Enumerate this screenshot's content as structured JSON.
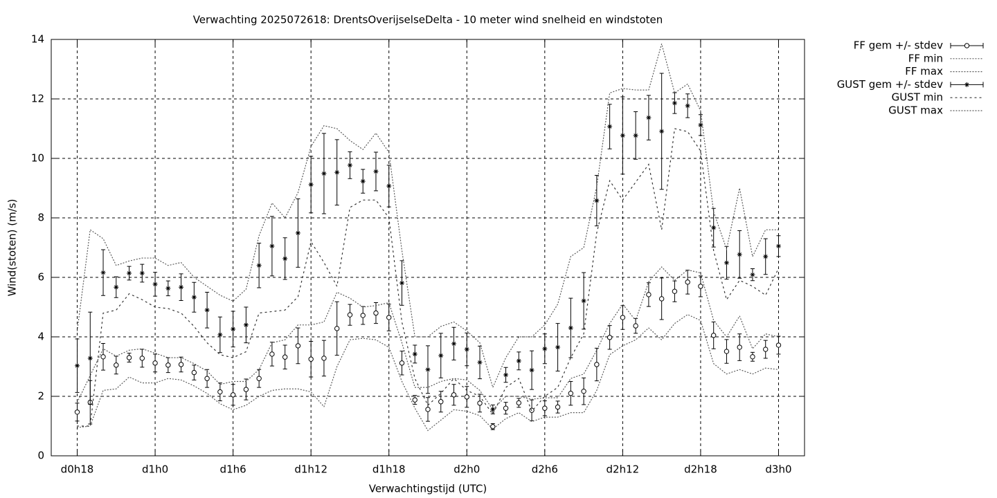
{
  "chart_data": {
    "type": "errorbar-line",
    "title": "Verwachting 2025072618: DrentsOverijselseDelta - 10 meter wind snelheid en windstoten",
    "xlabel": "Verwachtingstijd (UTC)",
    "ylabel": "Wind(stoten) (m/s)",
    "x": [
      18,
      19,
      20,
      21,
      22,
      23,
      24,
      25,
      26,
      27,
      28,
      29,
      30,
      31,
      32,
      33,
      34,
      35,
      36,
      37,
      38,
      39,
      40,
      41,
      42,
      43,
      44,
      45,
      46,
      47,
      48,
      49,
      50,
      51,
      52,
      53,
      54,
      55,
      56,
      57,
      58,
      59,
      60,
      61,
      62,
      63,
      64,
      65,
      66,
      67,
      68,
      69,
      70,
      71,
      72
    ],
    "xlim": [
      16,
      74
    ],
    "xticks": [
      {
        "value": 18,
        "label": "d0h18"
      },
      {
        "value": 24,
        "label": "d1h0"
      },
      {
        "value": 30,
        "label": "d1h6"
      },
      {
        "value": 36,
        "label": "d1h12"
      },
      {
        "value": 42,
        "label": "d1h18"
      },
      {
        "value": 48,
        "label": "d2h0"
      },
      {
        "value": 54,
        "label": "d2h6"
      },
      {
        "value": 60,
        "label": "d2h12"
      },
      {
        "value": 66,
        "label": "d2h18"
      },
      {
        "value": 72,
        "label": "d3h0"
      }
    ],
    "ylim": [
      0,
      14
    ],
    "yticks": [
      0,
      2,
      4,
      6,
      8,
      10,
      12,
      14
    ],
    "grid": true,
    "legend": "outside-top-right",
    "series": [
      {
        "name": "FF gem +/- stdev",
        "color": "#000000",
        "style": "errorbars",
        "marker": "circle",
        "values": [
          1.47,
          1.8,
          3.33,
          3.05,
          3.3,
          3.28,
          3.12,
          3.05,
          3.07,
          2.8,
          2.6,
          2.15,
          2.05,
          2.23,
          2.6,
          3.42,
          3.32,
          3.7,
          3.25,
          3.28,
          4.28,
          4.74,
          4.72,
          4.8,
          4.65,
          3.12,
          1.88,
          1.56,
          1.82,
          2.05,
          1.98,
          1.77,
          0.98,
          1.6,
          1.78,
          1.53,
          1.6,
          1.64,
          2.1,
          2.17,
          3.07,
          3.98,
          4.65,
          4.37,
          5.42,
          5.28,
          5.53,
          5.84,
          5.7,
          4.05,
          3.51,
          3.65,
          3.33,
          3.58,
          3.72
        ],
        "errors": [
          0.3,
          0.73,
          0.45,
          0.3,
          0.15,
          0.3,
          0.3,
          0.25,
          0.25,
          0.25,
          0.3,
          0.3,
          0.35,
          0.35,
          0.3,
          0.4,
          0.4,
          0.6,
          0.6,
          0.6,
          0.9,
          0.35,
          0.3,
          0.35,
          0.45,
          0.4,
          0.15,
          0.4,
          0.35,
          0.35,
          0.35,
          0.3,
          0.1,
          0.2,
          0.15,
          0.35,
          0.25,
          0.2,
          0.4,
          0.45,
          0.55,
          0.4,
          0.4,
          0.25,
          0.4,
          0.7,
          0.35,
          0.4,
          0.35,
          0.45,
          0.4,
          0.45,
          0.15,
          0.3,
          0.3
        ]
      },
      {
        "name": "FF min",
        "color": "#555555",
        "style": "dotted",
        "values": [
          0.95,
          1.0,
          2.2,
          2.25,
          2.65,
          2.45,
          2.45,
          2.6,
          2.55,
          2.35,
          2.1,
          1.75,
          1.55,
          1.7,
          2.0,
          2.2,
          2.25,
          2.25,
          2.15,
          1.65,
          3.0,
          3.9,
          3.95,
          3.9,
          3.65,
          2.5,
          1.6,
          0.85,
          1.2,
          1.55,
          1.5,
          1.35,
          0.9,
          1.25,
          1.45,
          1.15,
          1.3,
          1.3,
          1.45,
          1.45,
          2.2,
          3.4,
          3.7,
          3.9,
          4.3,
          3.9,
          4.45,
          4.75,
          4.55,
          3.1,
          2.75,
          2.9,
          2.75,
          2.95,
          2.9
        ]
      },
      {
        "name": "FF max",
        "color": "#555555",
        "style": "dotted",
        "values": [
          1.8,
          2.7,
          3.6,
          3.35,
          3.55,
          3.6,
          3.45,
          3.3,
          3.3,
          3.1,
          2.85,
          2.4,
          2.5,
          2.5,
          2.9,
          3.8,
          3.9,
          4.4,
          4.4,
          4.5,
          5.5,
          5.3,
          5.0,
          5.05,
          5.15,
          3.8,
          2.3,
          2.3,
          2.5,
          2.6,
          2.55,
          2.2,
          1.55,
          2.0,
          2.0,
          1.9,
          1.95,
          1.95,
          2.6,
          2.75,
          3.55,
          4.45,
          5.1,
          4.55,
          5.85,
          6.35,
          5.9,
          6.25,
          6.15,
          4.55,
          4.0,
          4.7,
          3.6,
          4.1,
          4.0
        ]
      },
      {
        "name": "GUST gem +/- stdev",
        "color": "#000000",
        "style": "errorbars",
        "marker": "star",
        "values": [
          3.03,
          3.28,
          6.16,
          5.67,
          6.14,
          6.14,
          5.77,
          5.63,
          5.67,
          5.33,
          4.9,
          4.07,
          4.26,
          4.4,
          6.4,
          7.05,
          6.63,
          7.49,
          9.12,
          9.49,
          9.53,
          9.77,
          9.23,
          9.56,
          9.07,
          5.81,
          3.42,
          2.9,
          3.37,
          3.77,
          3.58,
          3.14,
          1.56,
          2.72,
          3.19,
          2.88,
          3.6,
          3.65,
          4.3,
          5.21,
          8.58,
          11.07,
          10.77,
          10.77,
          11.37,
          10.91,
          11.86,
          11.77,
          11.12,
          7.67,
          6.49,
          6.77,
          6.09,
          6.7,
          7.05
        ],
        "errors": [
          0.9,
          1.55,
          0.77,
          0.35,
          0.23,
          0.3,
          0.4,
          0.25,
          0.45,
          0.5,
          0.6,
          0.6,
          0.6,
          0.6,
          0.75,
          1.0,
          0.7,
          1.15,
          0.95,
          1.35,
          1.1,
          0.45,
          0.4,
          0.65,
          0.7,
          0.75,
          0.3,
          0.8,
          0.75,
          0.55,
          0.55,
          0.55,
          0.15,
          0.25,
          0.3,
          0.65,
          0.5,
          0.8,
          1.0,
          0.95,
          0.85,
          0.75,
          1.3,
          0.8,
          0.75,
          1.95,
          0.35,
          0.4,
          0.35,
          0.65,
          0.55,
          0.8,
          0.2,
          0.6,
          0.35
        ]
      },
      {
        "name": "GUST min",
        "color": "#333333",
        "style": "dotted-wide",
        "values": [
          1.0,
          1.0,
          4.8,
          4.9,
          5.45,
          5.25,
          5.0,
          4.95,
          4.8,
          4.35,
          3.8,
          3.4,
          3.3,
          3.5,
          4.8,
          4.85,
          4.9,
          5.35,
          7.2,
          6.5,
          5.7,
          8.35,
          8.6,
          8.6,
          8.0,
          4.5,
          2.6,
          1.7,
          2.1,
          2.6,
          2.2,
          2.0,
          1.4,
          2.3,
          2.6,
          1.5,
          2.0,
          2.3,
          3.3,
          4.1,
          7.5,
          9.25,
          8.6,
          9.2,
          9.8,
          7.6,
          11.0,
          10.9,
          10.25,
          6.9,
          5.25,
          5.9,
          5.7,
          5.4,
          6.3
        ]
      },
      {
        "name": "GUST max",
        "color": "#555555",
        "style": "dotted",
        "values": [
          4.2,
          7.6,
          7.3,
          6.4,
          6.55,
          6.65,
          6.65,
          6.4,
          6.5,
          6.0,
          5.7,
          5.4,
          5.2,
          5.6,
          7.4,
          8.5,
          8.0,
          8.85,
          10.4,
          11.1,
          11.0,
          10.6,
          10.3,
          10.85,
          10.2,
          6.9,
          4.0,
          4.0,
          4.35,
          4.5,
          4.2,
          3.8,
          2.3,
          3.3,
          4.0,
          4.0,
          4.4,
          5.1,
          6.7,
          7.0,
          9.05,
          12.2,
          12.35,
          12.3,
          12.3,
          13.85,
          12.2,
          12.5,
          11.6,
          8.2,
          6.95,
          9.0,
          6.7,
          7.6,
          7.6
        ]
      }
    ]
  }
}
